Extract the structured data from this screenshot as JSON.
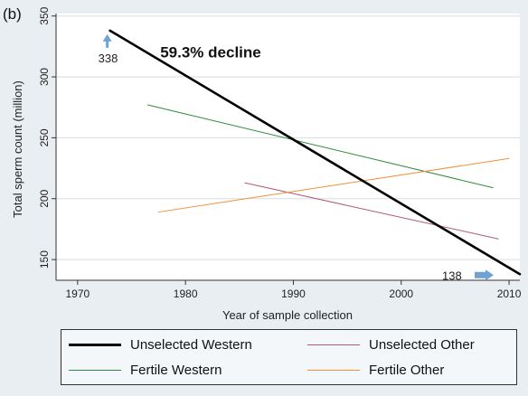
{
  "panel_label": "(b)",
  "chart_data": {
    "type": "line",
    "title": "",
    "xlabel": "Year of sample collection",
    "ylabel": "Total sperm count (million)",
    "xlim": [
      1968,
      2011
    ],
    "ylim": [
      133,
      352
    ],
    "xticks": [
      1970,
      1980,
      1990,
      2000,
      2010
    ],
    "yticks": [
      150,
      200,
      250,
      300,
      350
    ],
    "grid": "horizontal",
    "legend_position": "bottom",
    "series": [
      {
        "name": "Unselected Western",
        "color": "#000000",
        "width": 2.6,
        "x": [
          1973,
          2011
        ],
        "y": [
          338,
          138
        ]
      },
      {
        "name": "Unselected Other",
        "color": "#b05a78",
        "width": 1,
        "x": [
          1985.5,
          2009
        ],
        "y": [
          213,
          167
        ]
      },
      {
        "name": "Fertile Western",
        "color": "#2e8b3d",
        "width": 1,
        "x": [
          1976.5,
          2008.5
        ],
        "y": [
          277,
          209
        ]
      },
      {
        "name": "Fertile Other",
        "color": "#f0903a",
        "width": 1,
        "x": [
          1977.5,
          2010
        ],
        "y": [
          189,
          233
        ]
      }
    ],
    "annotations": [
      {
        "text": "59.3% decline",
        "x": 1979,
        "y": 331
      },
      {
        "text": "338",
        "x": 1973,
        "y": 338,
        "arrow": "up"
      },
      {
        "text": "138",
        "x": 2011,
        "y": 138,
        "arrow": "right"
      }
    ]
  },
  "legend": {
    "items": [
      {
        "label": "Unselected Western",
        "color": "#000000"
      },
      {
        "label": "Unselected Other",
        "color": "#b05a78"
      },
      {
        "label": "Fertile Western",
        "color": "#2e8b3d"
      },
      {
        "label": "Fertile Other",
        "color": "#f0903a"
      }
    ]
  },
  "colors": {
    "arrow": "#6fa3d6",
    "grid": "#d5dde3",
    "plot_bg": "#ffffff"
  }
}
